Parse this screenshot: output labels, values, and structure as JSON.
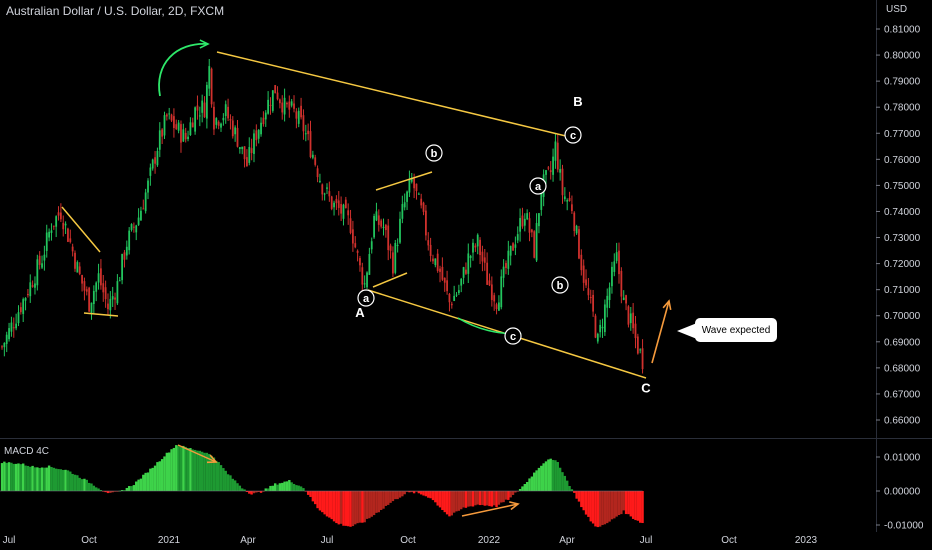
{
  "title": "Australian Dollar / U.S. Dollar, 2D, FXCM",
  "currency": "USD",
  "callout": "Wave expected",
  "indicator_title": "MACD 4C",
  "colors": {
    "bull": "#26a65b",
    "bear": "#d0312d",
    "bull_bright": "#22c55e",
    "trendline": "#f5c842",
    "arrow_green": "#2ee86a",
    "arrow_orange": "#f59a3c",
    "hist_green": "#1e9a32",
    "hist_red": "#b3261e",
    "hist_bright_green": "#3ed34a",
    "hist_bright_red": "#ff1a1a"
  },
  "chart_data": [
    {
      "type": "candlestick",
      "title": "Australian Dollar / U.S. Dollar, 2D, FXCM",
      "ylim": [
        0.66,
        0.815
      ],
      "y_ticks": [
        "0.81000",
        "0.80000",
        "0.79000",
        "0.78000",
        "0.77000",
        "0.76000",
        "0.75000",
        "0.74000",
        "0.73000",
        "0.72000",
        "0.71000",
        "0.70000",
        "0.69000",
        "0.68000",
        "0.67000",
        "0.66000"
      ],
      "x_ticks": [
        "Jul",
        "Oct",
        "2021",
        "Apr",
        "Jul",
        "Oct",
        "2022",
        "Apr",
        "Jul",
        "Oct",
        "2023"
      ],
      "close_path": [
        {
          "t": 0,
          "v": 0.688
        },
        {
          "t": 6,
          "v": 0.7
        },
        {
          "t": 12,
          "v": 0.712
        },
        {
          "t": 17,
          "v": 0.722
        },
        {
          "t": 21,
          "v": 0.735
        },
        {
          "t": 25,
          "v": 0.74
        },
        {
          "t": 29,
          "v": 0.728
        },
        {
          "t": 33,
          "v": 0.715
        },
        {
          "t": 37,
          "v": 0.705
        },
        {
          "t": 41,
          "v": 0.715
        },
        {
          "t": 45,
          "v": 0.703
        },
        {
          "t": 49,
          "v": 0.712
        },
        {
          "t": 53,
          "v": 0.728
        },
        {
          "t": 58,
          "v": 0.738
        },
        {
          "t": 62,
          "v": 0.75
        },
        {
          "t": 66,
          "v": 0.765
        },
        {
          "t": 70,
          "v": 0.776
        },
        {
          "t": 74,
          "v": 0.772
        },
        {
          "t": 78,
          "v": 0.768
        },
        {
          "t": 82,
          "v": 0.779
        },
        {
          "t": 86,
          "v": 0.78
        },
        {
          "t": 88,
          "v": 0.795
        },
        {
          "t": 90,
          "v": 0.775
        },
        {
          "t": 95,
          "v": 0.778
        },
        {
          "t": 100,
          "v": 0.768
        },
        {
          "t": 104,
          "v": 0.758
        },
        {
          "t": 108,
          "v": 0.77
        },
        {
          "t": 112,
          "v": 0.78
        },
        {
          "t": 116,
          "v": 0.787
        },
        {
          "t": 120,
          "v": 0.78
        },
        {
          "t": 124,
          "v": 0.778
        },
        {
          "t": 128,
          "v": 0.772
        },
        {
          "t": 132,
          "v": 0.762
        },
        {
          "t": 136,
          "v": 0.75
        },
        {
          "t": 140,
          "v": 0.743
        },
        {
          "t": 144,
          "v": 0.74
        },
        {
          "t": 148,
          "v": 0.735
        },
        {
          "t": 152,
          "v": 0.718
        },
        {
          "t": 154,
          "v": 0.712
        },
        {
          "t": 158,
          "v": 0.737
        },
        {
          "t": 162,
          "v": 0.734
        },
        {
          "t": 166,
          "v": 0.72
        },
        {
          "t": 170,
          "v": 0.74
        },
        {
          "t": 174,
          "v": 0.752
        },
        {
          "t": 178,
          "v": 0.74
        },
        {
          "t": 182,
          "v": 0.725
        },
        {
          "t": 186,
          "v": 0.717
        },
        {
          "t": 190,
          "v": 0.705
        },
        {
          "t": 194,
          "v": 0.71
        },
        {
          "t": 198,
          "v": 0.722
        },
        {
          "t": 202,
          "v": 0.728
        },
        {
          "t": 206,
          "v": 0.714
        },
        {
          "t": 210,
          "v": 0.706
        },
        {
          "t": 213,
          "v": 0.715
        },
        {
          "t": 218,
          "v": 0.73
        },
        {
          "t": 222,
          "v": 0.74
        },
        {
          "t": 226,
          "v": 0.725
        },
        {
          "t": 229,
          "v": 0.749
        },
        {
          "t": 233,
          "v": 0.755
        },
        {
          "t": 235,
          "v": 0.765
        },
        {
          "t": 238,
          "v": 0.747
        },
        {
          "t": 242,
          "v": 0.742
        },
        {
          "t": 245,
          "v": 0.725
        },
        {
          "t": 248,
          "v": 0.71
        },
        {
          "t": 251,
          "v": 0.7
        },
        {
          "t": 253,
          "v": 0.69
        },
        {
          "t": 256,
          "v": 0.703
        },
        {
          "t": 259,
          "v": 0.715
        },
        {
          "t": 261,
          "v": 0.722
        },
        {
          "t": 264,
          "v": 0.705
        },
        {
          "t": 267,
          "v": 0.697
        },
        {
          "t": 270,
          "v": 0.688
        },
        {
          "t": 272,
          "v": 0.683
        }
      ]
    },
    {
      "type": "bar",
      "title": "MACD 4C",
      "ylim": [
        -0.0115,
        0.014
      ],
      "y_ticks": [
        "0.01000",
        "0.00000",
        "-0.01000"
      ],
      "values_path": [
        {
          "t": 0,
          "v": 0.0085
        },
        {
          "t": 8,
          "v": 0.008
        },
        {
          "t": 14,
          "v": 0.007
        },
        {
          "t": 20,
          "v": 0.0072
        },
        {
          "t": 28,
          "v": 0.006
        },
        {
          "t": 36,
          "v": 0.003
        },
        {
          "t": 42,
          "v": 0.0005
        },
        {
          "t": 46,
          "v": -0.0008
        },
        {
          "t": 50,
          "v": -0.0002
        },
        {
          "t": 56,
          "v": 0.002
        },
        {
          "t": 64,
          "v": 0.007
        },
        {
          "t": 70,
          "v": 0.011
        },
        {
          "t": 74,
          "v": 0.0135
        },
        {
          "t": 80,
          "v": 0.0125
        },
        {
          "t": 86,
          "v": 0.0115
        },
        {
          "t": 90,
          "v": 0.01
        },
        {
          "t": 96,
          "v": 0.005
        },
        {
          "t": 102,
          "v": 0.001
        },
        {
          "t": 106,
          "v": -0.001
        },
        {
          "t": 110,
          "v": -0.0003
        },
        {
          "t": 116,
          "v": 0.002
        },
        {
          "t": 122,
          "v": 0.003
        },
        {
          "t": 128,
          "v": 0.001
        },
        {
          "t": 134,
          "v": -0.005
        },
        {
          "t": 142,
          "v": -0.0095
        },
        {
          "t": 148,
          "v": -0.0105
        },
        {
          "t": 154,
          "v": -0.009
        },
        {
          "t": 160,
          "v": -0.006
        },
        {
          "t": 166,
          "v": -0.003
        },
        {
          "t": 172,
          "v": -0.0005
        },
        {
          "t": 176,
          "v": -0.0005
        },
        {
          "t": 182,
          "v": -0.002
        },
        {
          "t": 190,
          "v": -0.0075
        },
        {
          "t": 196,
          "v": -0.005
        },
        {
          "t": 202,
          "v": -0.004
        },
        {
          "t": 210,
          "v": -0.0045
        },
        {
          "t": 216,
          "v": -0.002
        },
        {
          "t": 222,
          "v": 0.002
        },
        {
          "t": 228,
          "v": 0.007
        },
        {
          "t": 232,
          "v": 0.0095
        },
        {
          "t": 236,
          "v": 0.0085
        },
        {
          "t": 240,
          "v": 0.003
        },
        {
          "t": 244,
          "v": -0.002
        },
        {
          "t": 248,
          "v": -0.007
        },
        {
          "t": 252,
          "v": -0.0105
        },
        {
          "t": 256,
          "v": -0.01
        },
        {
          "t": 260,
          "v": -0.008
        },
        {
          "t": 264,
          "v": -0.006
        },
        {
          "t": 268,
          "v": -0.008
        },
        {
          "t": 272,
          "v": -0.0095
        }
      ]
    }
  ],
  "wave_labels": [
    {
      "text": "A",
      "t": 154,
      "v": 0.6995
    },
    {
      "text": "B",
      "t": 235,
      "v": 0.7805
    },
    {
      "text": "C",
      "t": 272,
      "v": 0.6705
    }
  ],
  "circle_labels": [
    {
      "text": "a",
      "t": 154,
      "v": 0.7085
    },
    {
      "text": "b",
      "t": 180,
      "v": 0.761
    },
    {
      "text": "a",
      "t": 224,
      "v": 0.7485
    },
    {
      "text": "b",
      "t": 234,
      "v": 0.712
    },
    {
      "text": "c",
      "t": 213,
      "v": 0.6965
    },
    {
      "text": "c",
      "t": 240,
      "v": 0.77
    }
  ]
}
